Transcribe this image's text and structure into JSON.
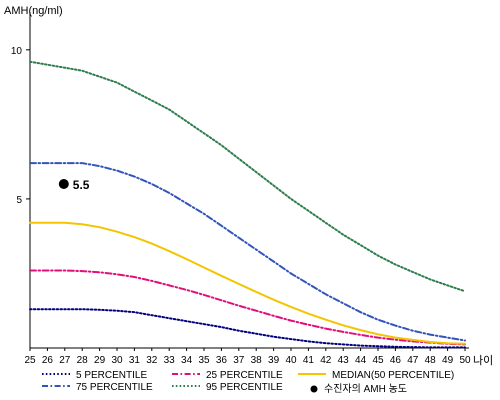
{
  "chart_data": {
    "type": "line",
    "title": "",
    "ylabel": "AMH(ng/ml)",
    "xlabel": "나이",
    "x": [
      25,
      26,
      27,
      28,
      29,
      30,
      31,
      32,
      33,
      34,
      35,
      36,
      37,
      38,
      39,
      40,
      41,
      42,
      43,
      44,
      45,
      46,
      47,
      48,
      49,
      50
    ],
    "ylim": [
      0,
      11
    ],
    "yticks": [
      5,
      10
    ],
    "xlim": [
      25,
      50
    ],
    "grid": false,
    "legend_position": "bottom",
    "series": [
      {
        "name": "5 PERCENTILE",
        "color": "#000080",
        "style": "dotted",
        "values": [
          1.3,
          1.3,
          1.3,
          1.3,
          1.28,
          1.25,
          1.2,
          1.1,
          1.0,
          0.9,
          0.8,
          0.7,
          0.58,
          0.48,
          0.38,
          0.3,
          0.22,
          0.16,
          0.12,
          0.08,
          0.06,
          0.04,
          0.03,
          0.02,
          0.02,
          0.02
        ]
      },
      {
        "name": "75 PERCENTILE",
        "color": "#3355bb",
        "style": "dashdot",
        "values": [
          6.2,
          6.2,
          6.2,
          6.2,
          6.1,
          5.95,
          5.75,
          5.5,
          5.2,
          4.85,
          4.5,
          4.1,
          3.7,
          3.3,
          2.9,
          2.5,
          2.15,
          1.8,
          1.5,
          1.2,
          0.95,
          0.75,
          0.58,
          0.45,
          0.35,
          0.25
        ]
      },
      {
        "name": "25 PERCENTILE",
        "color": "#e0107a",
        "style": "dashdot",
        "values": [
          2.6,
          2.6,
          2.6,
          2.58,
          2.54,
          2.47,
          2.38,
          2.25,
          2.1,
          1.95,
          1.78,
          1.6,
          1.42,
          1.25,
          1.08,
          0.92,
          0.78,
          0.65,
          0.54,
          0.44,
          0.35,
          0.28,
          0.22,
          0.18,
          0.14,
          0.12
        ]
      },
      {
        "name": "95 PERCENTILE",
        "color": "#2e7d4f",
        "style": "dotted",
        "values": [
          9.6,
          9.5,
          9.4,
          9.3,
          9.1,
          8.9,
          8.6,
          8.3,
          8.0,
          7.6,
          7.2,
          6.8,
          6.35,
          5.9,
          5.45,
          5.0,
          4.6,
          4.2,
          3.8,
          3.45,
          3.1,
          2.8,
          2.55,
          2.3,
          2.1,
          1.9
        ]
      },
      {
        "name": "MEDIAN(50 PERCENTILE)",
        "color": "#f2c500",
        "style": "solid",
        "values": [
          4.2,
          4.2,
          4.2,
          4.15,
          4.05,
          3.9,
          3.72,
          3.5,
          3.25,
          2.98,
          2.7,
          2.42,
          2.15,
          1.88,
          1.62,
          1.38,
          1.15,
          0.95,
          0.76,
          0.6,
          0.46,
          0.35,
          0.27,
          0.2,
          0.16,
          0.14
        ]
      }
    ],
    "highlight_point": {
      "name": "수진자의 AMH 농도",
      "x": 27,
      "y": 5.5,
      "label": "5.5",
      "color": "#000000"
    }
  }
}
